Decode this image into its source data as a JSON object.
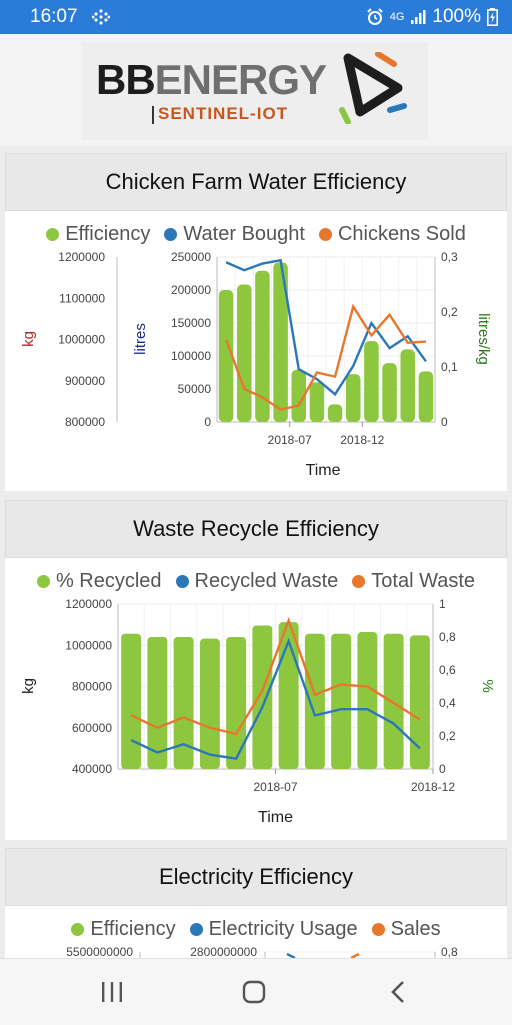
{
  "status": {
    "time": "16:07",
    "network": "4G",
    "battery": "100%"
  },
  "logo": {
    "brand_a": "BB",
    "brand_b": "ENERGY",
    "subtitle": "SENTINEL-IOT"
  },
  "colors": {
    "efficiency": "#8dc63f",
    "series_blue": "#2a78b8",
    "series_orange": "#e8772e",
    "header_blue": "#2b7bd8"
  },
  "cards": [
    {
      "title": "Chicken Farm Water Efficiency",
      "legend": [
        "Efficiency",
        "Water Bought",
        "Chickens Sold"
      ],
      "far_left_axis_label": "kg",
      "left_axis_label": "litres",
      "right_axis_label": "litres/kg",
      "x_label": "Time"
    },
    {
      "title": "Waste Recycle Efficiency",
      "legend": [
        "% Recycled",
        "Recycled Waste",
        "Total Waste"
      ],
      "left_axis_label": "kg",
      "right_axis_label": "%",
      "x_label": "Time"
    },
    {
      "title": "Electricity Efficiency",
      "legend": [
        "Efficiency",
        "Electricity Usage",
        "Sales"
      ]
    }
  ],
  "chart_data": [
    {
      "type": "bar",
      "title": "Chicken Farm Water Efficiency",
      "x_ticks": [
        "2018-07",
        "2018-12"
      ],
      "xlabel": "Time",
      "far_left_axis": {
        "label": "kg",
        "ticks": [
          "1200000",
          "1100000",
          "1000000",
          "900000",
          "800000"
        ],
        "range": [
          800000,
          1200000
        ]
      },
      "left_axis": {
        "label": "litres",
        "ticks": [
          "250000",
          "200000",
          "150000",
          "100000",
          "50000",
          "0"
        ],
        "range": [
          0,
          250000
        ]
      },
      "right_axis": {
        "label": "litres/kg",
        "ticks": [
          "0,3",
          "0,2",
          "0,1",
          "0"
        ],
        "range": [
          0,
          0.3
        ]
      },
      "series": [
        {
          "name": "Efficiency",
          "kind": "bar",
          "axis": "right",
          "values": [
            0.24,
            0.25,
            0.275,
            0.29,
            0.095,
            0.072,
            0.032,
            0.087,
            0.147,
            0.107,
            0.132,
            0.092
          ]
        },
        {
          "name": "Water Bought",
          "kind": "line",
          "axis": "left",
          "values": [
            242000,
            230000,
            240000,
            245000,
            80000,
            65000,
            42000,
            85000,
            150000,
            112000,
            130000,
            92000
          ]
        },
        {
          "name": "Chickens Sold",
          "kind": "line",
          "axis": "far_left",
          "values": [
            1000000,
            880000,
            860000,
            830000,
            840000,
            920000,
            910000,
            1080000,
            1010000,
            1060000,
            992000,
            995000
          ]
        }
      ]
    },
    {
      "type": "bar",
      "title": "Waste Recycle Efficiency",
      "x_ticks": [
        "2018-07",
        "2018-12"
      ],
      "xlabel": "Time",
      "left_axis": {
        "label": "kg",
        "ticks": [
          "1200000",
          "1000000",
          "800000",
          "600000",
          "400000"
        ],
        "range": [
          400000,
          1200000
        ]
      },
      "right_axis": {
        "label": "%",
        "ticks": [
          "1",
          "0,8",
          "0,6",
          "0,4",
          "0,2",
          "0"
        ],
        "range": [
          0,
          1
        ]
      },
      "series": [
        {
          "name": "% Recycled",
          "kind": "bar",
          "axis": "right",
          "values": [
            0.82,
            0.8,
            0.8,
            0.79,
            0.8,
            0.87,
            0.89,
            0.82,
            0.82,
            0.83,
            0.82,
            0.81
          ]
        },
        {
          "name": "Recycled Waste",
          "kind": "line",
          "axis": "left",
          "values": [
            540000,
            480000,
            520000,
            470000,
            450000,
            700000,
            1020000,
            660000,
            690000,
            690000,
            620000,
            500000
          ]
        },
        {
          "name": "Total Waste",
          "kind": "line",
          "axis": "left",
          "values": [
            660000,
            600000,
            650000,
            600000,
            570000,
            780000,
            1120000,
            760000,
            810000,
            800000,
            720000,
            640000
          ]
        }
      ]
    },
    {
      "type": "bar",
      "title": "Electricity Efficiency",
      "far_left_axis": {
        "ticks": [
          "5500000000"
        ]
      },
      "left_axis": {
        "ticks": [
          "2800000000"
        ]
      },
      "right_axis": {
        "ticks": [
          "0,8"
        ]
      },
      "series": [
        {
          "name": "Efficiency"
        },
        {
          "name": "Electricity Usage"
        },
        {
          "name": "Sales"
        }
      ]
    }
  ]
}
